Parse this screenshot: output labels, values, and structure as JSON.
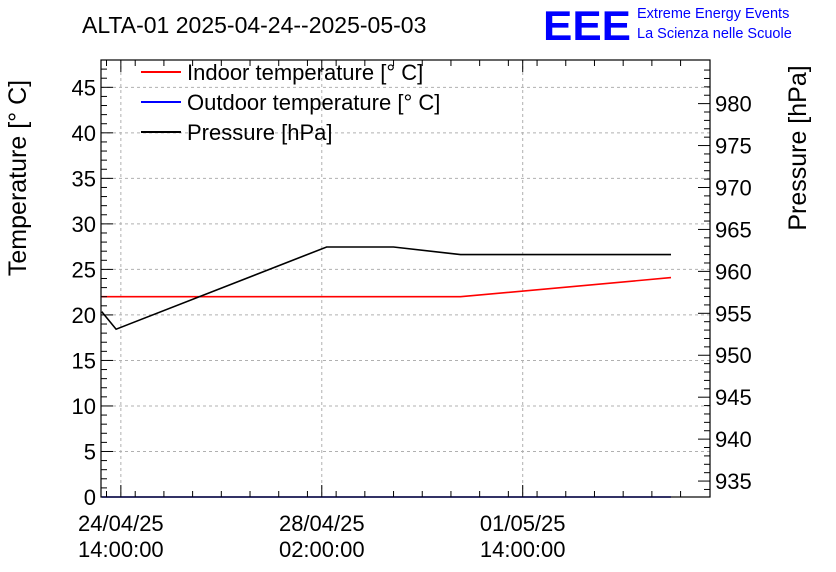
{
  "chart_data": {
    "type": "line",
    "title": "ALTA-01 2025-04-24--2025-05-03",
    "ylabel": "Temperature [° C]",
    "y2label": "Pressure [hPa]",
    "ylim": [
      0,
      48
    ],
    "y2lim": [
      933.1,
      985.2
    ],
    "xlim_hours": [
      -8.3,
      246.3
    ],
    "yticks": [
      0,
      5,
      10,
      15,
      20,
      25,
      30,
      35,
      40,
      45
    ],
    "y2ticks": [
      935,
      940,
      945,
      950,
      955,
      960,
      965,
      970,
      975,
      980
    ],
    "xticks": [
      {
        "h": 0,
        "date": "24/04/25",
        "time": "14:00:00"
      },
      {
        "h": 84,
        "date": "28/04/25",
        "time": "02:00:00"
      },
      {
        "h": 168,
        "date": "01/05/25",
        "time": "14:00:00"
      }
    ],
    "grid": true,
    "legend_position": "top-left",
    "series": [
      {
        "name": "Indoor temperature [° C]",
        "color": "#ff0000",
        "axis": "left",
        "points": [
          [
            -8,
            22
          ],
          [
            142,
            22
          ],
          [
            230,
            24.1
          ]
        ]
      },
      {
        "name": "Outdoor temperature [° C]",
        "color": "#0000ff",
        "axis": "left",
        "points": [
          [
            -8,
            0
          ],
          [
            230,
            0
          ]
        ]
      },
      {
        "name": "Pressure [hPa]",
        "color": "#000000",
        "axis": "right",
        "points": [
          [
            -8,
            955.2
          ],
          [
            -2,
            953.1
          ],
          [
            86,
            962.9
          ],
          [
            114,
            962.9
          ],
          [
            142,
            962.0
          ],
          [
            230,
            962.0
          ]
        ]
      }
    ]
  },
  "logo": {
    "text": "EEE",
    "line1": "Extreme Energy Events",
    "line2": "La Scienza nelle Scuole",
    "color": "#0000ff"
  }
}
